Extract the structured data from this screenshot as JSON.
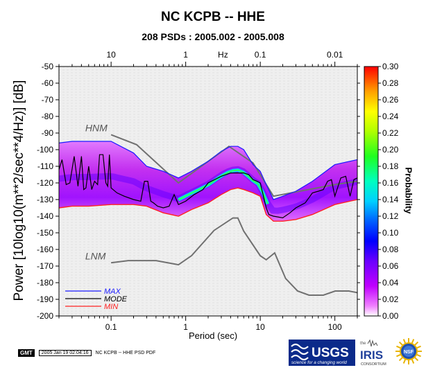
{
  "title": "NC KCPB -- HHE",
  "subtitle": "208 PSDs : 2005.002 - 2005.008",
  "footer": {
    "gmt_badge": "GMT",
    "timestamp": "2005 Jan 19 02:04:16",
    "caption": "NC KCPB -- HHE PSD PDF"
  },
  "logos": {
    "usgs": "USGS",
    "usgs_tagline": "science for a changing world",
    "iris": "IRIS",
    "iris_sub": "CONSORTIUM",
    "iris_the": "the",
    "nsf": "NSF"
  },
  "chart_data": {
    "type": "heatmap",
    "title": "NC KCPB -- HHE",
    "subtitle": "208 PSDs : 2005.002 - 2005.008",
    "xlabel": "Period (sec)",
    "x2label": "Hz",
    "ylabel": "Power [10log10(m**2/sec**4/Hz)] [dB]",
    "xscale": "log",
    "xlim": [
      0.02,
      200
    ],
    "ylim": [
      -200,
      -50
    ],
    "x_ticks": [
      0.1,
      1,
      10,
      100
    ],
    "x_tick_labels": [
      "0.1",
      "1",
      "10",
      "100"
    ],
    "x2_ticks": [
      10,
      1,
      0.1,
      0.01
    ],
    "x2_tick_labels": [
      "10",
      "1",
      "0.1",
      "0.01"
    ],
    "y_ticks": [
      -50,
      -60,
      -70,
      -80,
      -90,
      -100,
      -110,
      -120,
      -130,
      -140,
      -150,
      -160,
      -170,
      -180,
      -190,
      -200
    ],
    "y_tick_labels": [
      "-50",
      "-60",
      "-70",
      "-80",
      "-90",
      "-100",
      "-110",
      "-120",
      "-130",
      "-140",
      "-150",
      "-160",
      "-170",
      "-180",
      "-190",
      "-200"
    ],
    "colorbar": {
      "label": "Probability",
      "range": [
        0,
        0.3
      ],
      "ticks": [
        0.0,
        0.02,
        0.04,
        0.06,
        0.08,
        0.1,
        0.12,
        0.14,
        0.16,
        0.18,
        0.2,
        0.22,
        0.24,
        0.26,
        0.28,
        0.3
      ],
      "tick_labels": [
        "0.00",
        "0.02",
        "0.04",
        "0.06",
        "0.08",
        "0.10",
        "0.12",
        "0.14",
        "0.16",
        "0.18",
        "0.20",
        "0.22",
        "0.24",
        "0.26",
        "0.28",
        "0.30"
      ]
    },
    "reference_labels": [
      {
        "name": "HNM",
        "period": 0.045,
        "power": -89
      },
      {
        "name": "LNM",
        "period": 0.045,
        "power": -166
      }
    ],
    "legend": {
      "position": "bottom-left",
      "entries": [
        {
          "name": "MAX",
          "color": "#1a1aff"
        },
        {
          "name": "MODE",
          "color": "#000000"
        },
        {
          "name": "MIN",
          "color": "#ff2020"
        }
      ]
    },
    "series": [
      {
        "name": "HNM",
        "color": "#777777",
        "x": [
          0.1,
          0.22,
          0.8,
          3.8,
          8,
          15,
          100,
          200
        ],
        "y": [
          -91,
          -97,
          -120,
          -98,
          -108,
          -128,
          -121,
          -119
        ]
      },
      {
        "name": "LNM",
        "color": "#777777",
        "x": [
          0.1,
          0.17,
          0.4,
          0.8,
          1.2,
          2.4,
          4.3,
          5,
          6,
          10,
          12,
          15.6,
          21.9,
          31.6,
          45,
          70,
          101,
          154,
          200
        ],
        "y": [
          -168,
          -166.7,
          -166.7,
          -169.2,
          -163.7,
          -148.6,
          -141.1,
          -141.1,
          -149,
          -163.8,
          -166.2,
          -162.1,
          -177.5,
          -185,
          -187.5,
          -187.5,
          -185,
          -185,
          -186
        ]
      },
      {
        "name": "MAX",
        "color": "#1a1aff",
        "x": [
          0.02,
          0.03,
          0.05,
          0.1,
          0.2,
          0.3,
          0.5,
          0.8,
          1.2,
          2,
          3,
          4,
          5,
          6,
          8,
          10,
          12,
          15,
          20,
          30,
          50,
          100,
          200
        ],
        "y": [
          -96,
          -95,
          -95,
          -95,
          -102,
          -110,
          -113,
          -117,
          -113,
          -107,
          -101,
          -98,
          -98,
          -100,
          -109,
          -113,
          -121,
          -130,
          -128,
          -125,
          -119,
          -109,
          -106
        ]
      },
      {
        "name": "MODE",
        "color": "#000000",
        "x": [
          0.02,
          0.022,
          0.025,
          0.028,
          0.032,
          0.036,
          0.04,
          0.043,
          0.046,
          0.05,
          0.055,
          0.06,
          0.066,
          0.07,
          0.078,
          0.085,
          0.09,
          0.095,
          0.1,
          0.12,
          0.15,
          0.2,
          0.25,
          0.28,
          0.31,
          0.34,
          0.37,
          0.42,
          0.5,
          0.6,
          0.7,
          0.8,
          1,
          1.3,
          1.7,
          2,
          3,
          4,
          5,
          6,
          7,
          8,
          9,
          10,
          12,
          13,
          15,
          20,
          25,
          30,
          40,
          50,
          60,
          70,
          80,
          90,
          100,
          120,
          140,
          160,
          180,
          200
        ],
        "y": [
          -112,
          -106,
          -121,
          -120,
          -104,
          -122,
          -104,
          -124,
          -123,
          -110,
          -124,
          -119,
          -121,
          -103,
          -103,
          -120,
          -122,
          -103,
          -123,
          -126,
          -128,
          -130,
          -131,
          -119,
          -119,
          -131,
          -132,
          -134,
          -135,
          -134,
          -127,
          -133,
          -131,
          -127,
          -124,
          -120,
          -116,
          -114,
          -114,
          -114,
          -115,
          -118,
          -119,
          -120,
          -135,
          -139,
          -140,
          -141,
          -138,
          -135,
          -132,
          -126,
          -125,
          -124,
          -119,
          -118,
          -128,
          -117,
          -116,
          -128,
          -118,
          -117
        ]
      },
      {
        "name": "MIN",
        "color": "#ff2020",
        "x": [
          0.02,
          0.03,
          0.05,
          0.1,
          0.2,
          0.3,
          0.5,
          0.8,
          1.2,
          2,
          3,
          4,
          5,
          6,
          8,
          10,
          12,
          15,
          20,
          30,
          50,
          100,
          200
        ],
        "y": [
          -135,
          -134,
          -134,
          -133,
          -133,
          -134,
          -138,
          -140,
          -136,
          -132,
          -127,
          -124,
          -123,
          -124,
          -126,
          -128,
          -139,
          -143,
          -143,
          -142,
          -139,
          -133,
          -130
        ]
      }
    ]
  }
}
